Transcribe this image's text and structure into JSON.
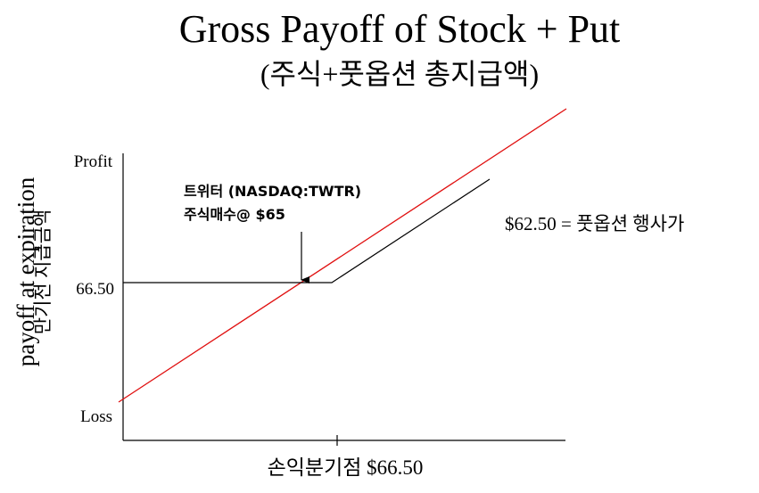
{
  "title": "Gross Payoff of Stock + Put",
  "subtitle": "(주식+풋옵션 총지급액)",
  "axes": {
    "y_label": "payoff at expiration",
    "y_label_ko": "만기전 지급금액",
    "y_top": "Profit",
    "y_mid": "66.50",
    "y_bottom": "Loss",
    "x_label": "손익분기점 $66.50"
  },
  "annotations": {
    "buy_line1": "트위터 (NASDAQ:TWTR)",
    "buy_line2": "주식매수@ $65",
    "strike": "$62.50 = 풋옵션 행사가"
  }
}
